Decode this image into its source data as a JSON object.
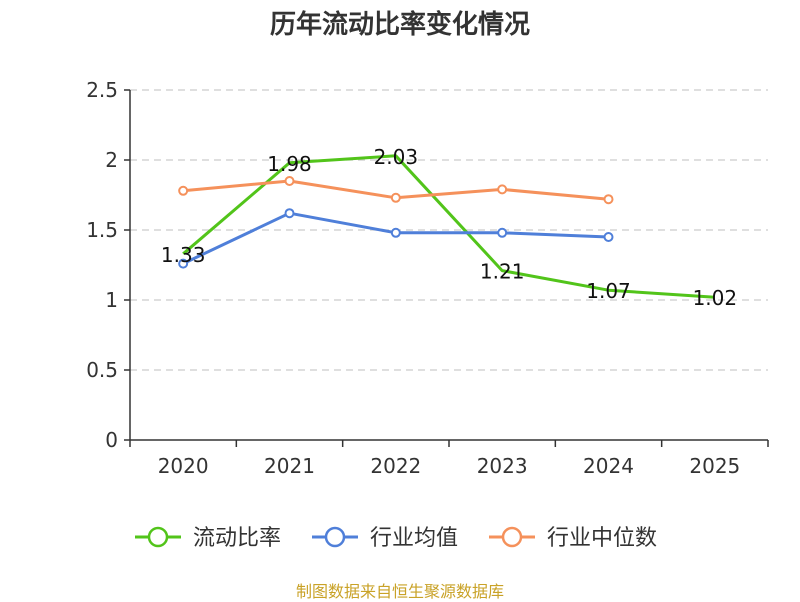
{
  "chart_data": {
    "type": "line",
    "title": "历年流动比率变化情况",
    "categories": [
      "2020",
      "2021",
      "2022",
      "2023",
      "2024",
      "2025"
    ],
    "ylim": [
      0,
      2.5
    ],
    "yticks": [
      "0",
      "0.5",
      "1",
      "1.5",
      "2",
      "2.5"
    ],
    "ytick_values": [
      0,
      0.5,
      1,
      1.5,
      2,
      2.5
    ],
    "grid": true,
    "legend_position": "bottom",
    "series": [
      {
        "name": "流动比率",
        "color": "#52c41a",
        "values": [
          1.33,
          1.98,
          2.03,
          1.21,
          1.07,
          1.02
        ],
        "labels": [
          "1.33",
          "1.98",
          "2.03",
          "1.21",
          "1.07",
          "1.02"
        ],
        "markers": false
      },
      {
        "name": "行业均值",
        "color": "#4f7fd9",
        "values": [
          1.26,
          1.62,
          1.48,
          1.48,
          1.45,
          null
        ],
        "markers": true
      },
      {
        "name": "行业中位数",
        "color": "#f5915b",
        "values": [
          1.78,
          1.85,
          1.73,
          1.79,
          1.72,
          null
        ],
        "markers": true
      }
    ]
  },
  "source_note": "制图数据来自恒生聚源数据库"
}
